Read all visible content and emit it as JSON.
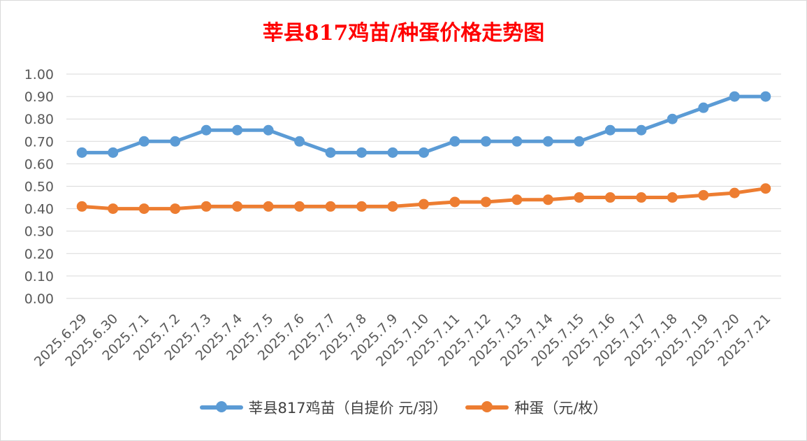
{
  "chart_data": {
    "type": "line",
    "title": "莘县817鸡苗/种蛋价格走势图",
    "categories": [
      "2025.6.29",
      "2025.6.30",
      "2025.7.1",
      "2025.7.2",
      "2025.7.3",
      "2025.7.4",
      "2025.7.5",
      "2025.7.6",
      "2025.7.7",
      "2025.7.8",
      "2025.7.9",
      "2025.7.10",
      "2025.7.11",
      "2025.7.12",
      "2025.7.13",
      "2025.7.14",
      "2025.7.15",
      "2025.7.16",
      "2025.7.17",
      "2025.7.18",
      "2025.7.19",
      "2025.7.20",
      "2025.7.21"
    ],
    "series": [
      {
        "name": "莘县817鸡苗（自提价 元/羽）",
        "color": "#5b9bd5",
        "values": [
          0.65,
          0.65,
          0.7,
          0.7,
          0.75,
          0.75,
          0.75,
          0.7,
          0.65,
          0.65,
          0.65,
          0.65,
          0.7,
          0.7,
          0.7,
          0.7,
          0.7,
          0.75,
          0.75,
          0.8,
          0.85,
          0.9,
          0.9
        ]
      },
      {
        "name": "种蛋（元/枚）",
        "color": "#ed7d31",
        "values": [
          0.41,
          0.4,
          0.4,
          0.4,
          0.41,
          0.41,
          0.41,
          0.41,
          0.41,
          0.41,
          0.41,
          0.42,
          0.43,
          0.43,
          0.44,
          0.44,
          0.45,
          0.45,
          0.45,
          0.45,
          0.46,
          0.47,
          0.49
        ]
      }
    ],
    "ylim": [
      0,
      1.0
    ],
    "yticks": [
      "0.00",
      "0.10",
      "0.20",
      "0.30",
      "0.40",
      "0.50",
      "0.60",
      "0.70",
      "0.80",
      "0.90",
      "1.00"
    ],
    "xlabel": "",
    "ylabel": "",
    "grid": true,
    "legend_position": "bottom",
    "title_color": "#ff0000"
  }
}
